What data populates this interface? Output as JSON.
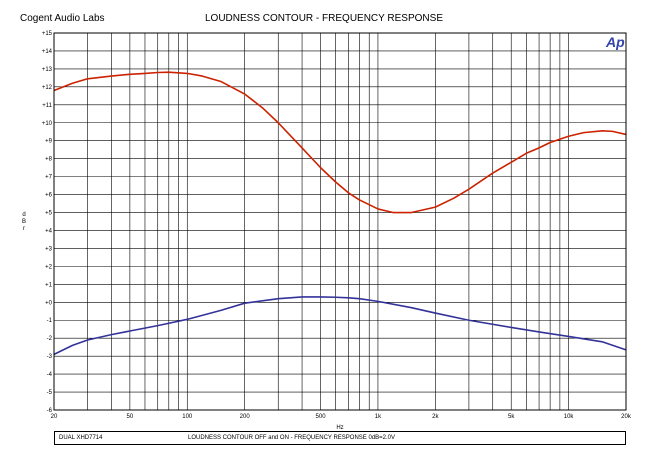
{
  "header": {
    "company": "Cogent Audio Labs",
    "title": "LOUDNESS CONTOUR  -  FREQUENCY RESPONSE",
    "logo": "Ap"
  },
  "footer": {
    "model": "DUAL XHD7714",
    "description": "LOUDNESS CONTOUR OFF and ON  -  FREQUENCY RESPONSE  0dB=2.0V"
  },
  "chart_data": {
    "type": "line",
    "title": "LOUDNESS CONTOUR  -  FREQUENCY RESPONSE",
    "xlabel": "Hz",
    "ylabel": "d B r",
    "xscale": "log",
    "xlim": [
      20,
      20000
    ],
    "ylim": [
      -6,
      15
    ],
    "grid": true,
    "x_ticks": [
      20,
      50,
      100,
      200,
      500,
      1000,
      2000,
      5000,
      10000,
      20000
    ],
    "x_tick_labels": [
      "20",
      "50",
      "100",
      "200",
      "500",
      "1k",
      "2k",
      "5k",
      "10k",
      "20k"
    ],
    "y_ticks": [
      15,
      14,
      13,
      12,
      11,
      10,
      9,
      8,
      7,
      6,
      5,
      4,
      3,
      2,
      1,
      0,
      -1,
      -2,
      -3,
      -4,
      -5,
      -6
    ],
    "y_tick_labels": [
      "+15",
      "+14",
      "+13",
      "+12",
      "+11",
      "+10",
      "+9",
      "+8",
      "+7",
      "+6",
      "+5",
      "+4",
      "+3",
      "+2",
      "+1",
      "+0",
      "-1",
      "-2",
      "-3",
      "-4",
      "-5",
      "-6"
    ],
    "series": [
      {
        "color": "#cc2200",
        "x": [
          20,
          25,
          30,
          40,
          50,
          60,
          70,
          80,
          100,
          120,
          150,
          200,
          250,
          300,
          400,
          500,
          600,
          700,
          800,
          1000,
          1200,
          1500,
          2000,
          2500,
          3000,
          4000,
          5000,
          6000,
          7000,
          8000,
          10000,
          12000,
          15000,
          17000,
          20000
        ],
        "y": [
          11.8,
          12.2,
          12.45,
          12.6,
          12.7,
          12.75,
          12.8,
          12.82,
          12.75,
          12.6,
          12.3,
          11.6,
          10.8,
          10.0,
          8.6,
          7.5,
          6.7,
          6.1,
          5.7,
          5.2,
          5.0,
          5.0,
          5.3,
          5.8,
          6.3,
          7.2,
          7.8,
          8.3,
          8.6,
          8.9,
          9.25,
          9.45,
          9.55,
          9.52,
          9.35
        ]
      },
      {
        "color": "#333399",
        "x": [
          20,
          25,
          30,
          40,
          50,
          70,
          100,
          150,
          200,
          300,
          400,
          500,
          600,
          700,
          800,
          1000,
          1500,
          2000,
          3000,
          5000,
          7000,
          10000,
          15000,
          20000
        ],
        "y": [
          -2.9,
          -2.4,
          -2.1,
          -1.8,
          -1.6,
          -1.3,
          -0.95,
          -0.45,
          -0.05,
          0.2,
          0.3,
          0.3,
          0.28,
          0.25,
          0.2,
          0.05,
          -0.3,
          -0.6,
          -1.0,
          -1.4,
          -1.65,
          -1.9,
          -2.2,
          -2.65
        ]
      }
    ]
  }
}
